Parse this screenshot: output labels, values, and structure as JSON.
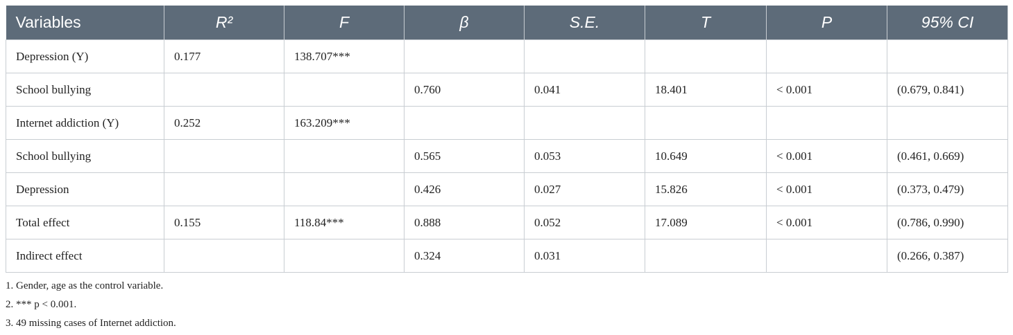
{
  "table": {
    "headers": [
      "Variables",
      "R²",
      "F",
      "β",
      "S.E.",
      "T",
      "P",
      "95% CI"
    ],
    "rows": [
      [
        "Depression (Y)",
        "0.177",
        "138.707***",
        null,
        null,
        null,
        null,
        null
      ],
      [
        "School bullying",
        null,
        null,
        "0.760",
        "0.041",
        "18.401",
        "< 0.001",
        "(0.679, 0.841)"
      ],
      [
        "Internet addiction (Y)",
        "0.252",
        "163.209***",
        null,
        null,
        null,
        null,
        null
      ],
      [
        "School bullying",
        null,
        null,
        "0.565",
        "0.053",
        "10.649",
        "< 0.001",
        "(0.461, 0.669)"
      ],
      [
        "Depression",
        null,
        null,
        "0.426",
        "0.027",
        "15.826",
        "< 0.001",
        "(0.373, 0.479)"
      ],
      [
        "Total effect",
        "0.155",
        "118.84***",
        "0.888",
        "0.052",
        "17.089",
        "< 0.001",
        "(0.786, 0.990)"
      ],
      [
        "Indirect effect",
        null,
        null,
        "0.324",
        "0.031",
        null,
        null,
        "(0.266, 0.387)"
      ]
    ]
  },
  "notes": [
    "1. Gender, age as the control variable.",
    "2. *** p < 0.001.",
    "3. 49 missing cases of Internet addiction."
  ]
}
